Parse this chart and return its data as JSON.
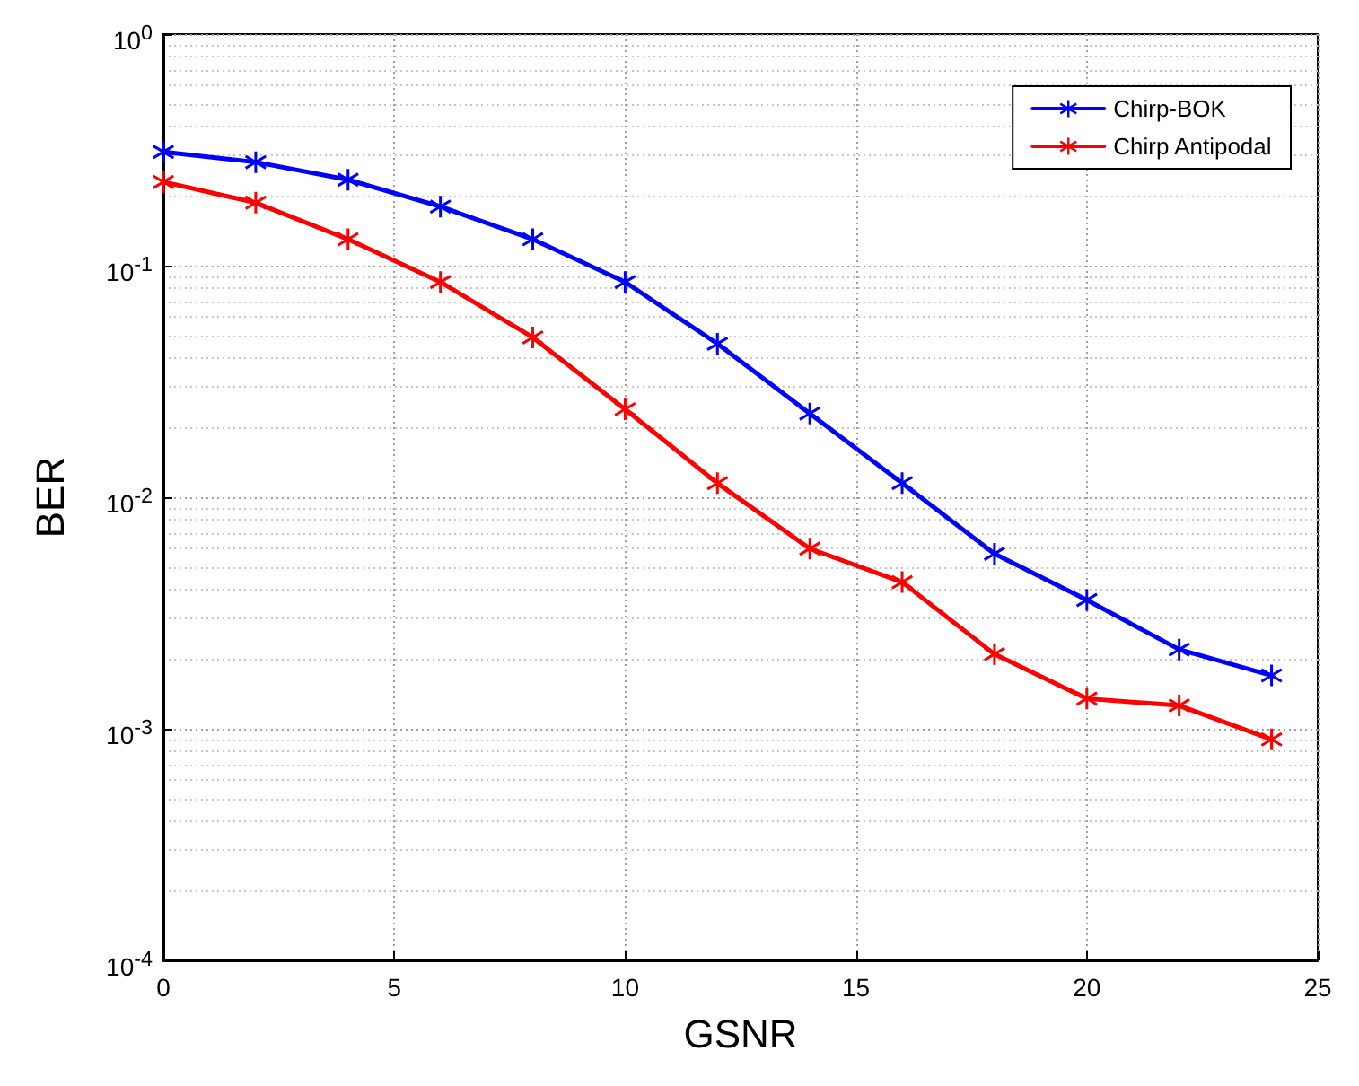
{
  "chart_data": {
    "type": "line",
    "xlabel": "GSNR",
    "ylabel": "BER",
    "log": "y",
    "grid": true,
    "legend": "top right",
    "marker": "star",
    "line_style": "solid",
    "x": [
      0,
      2,
      4,
      6,
      8,
      10,
      12,
      14,
      16,
      18,
      20,
      22,
      24
    ],
    "xlim": [
      0,
      25
    ],
    "xticks": [
      0,
      5,
      10,
      15,
      20,
      25
    ],
    "ylim": [
      0.0001,
      1
    ],
    "yticks": [
      {
        "value": 0.0001,
        "label": "10$^{-4}$"
      },
      {
        "value": 0.001,
        "label": "10$^{-3}$"
      },
      {
        "value": 0.01,
        "label": "10$^{-2}$"
      },
      {
        "value": 0.1,
        "label": "10$^{-1}$"
      },
      {
        "value": 1,
        "label": "10$^{0}$"
      }
    ],
    "series": [
      {
        "name": "Chirp-BOK",
        "color": "#0000ff",
        "values": [
          0.31,
          0.28,
          0.235,
          0.18,
          0.13,
          0.085,
          0.046,
          0.023,
          0.0115,
          0.0057,
          0.0036,
          0.0022,
          0.0017
        ]
      },
      {
        "name": "Chirp Antipodal",
        "color": "#ff0000",
        "values": [
          0.23,
          0.187,
          0.13,
          0.085,
          0.049,
          0.024,
          0.0115,
          0.006,
          0.0043,
          0.0021,
          0.00135,
          0.00126,
          0.0009
        ]
      }
    ]
  }
}
